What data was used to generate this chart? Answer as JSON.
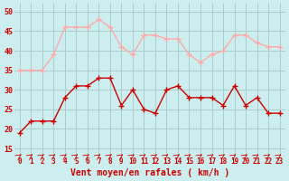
{
  "x": [
    0,
    1,
    2,
    3,
    4,
    5,
    6,
    7,
    8,
    9,
    10,
    11,
    12,
    13,
    14,
    15,
    16,
    17,
    18,
    19,
    20,
    21,
    22,
    23
  ],
  "rafales": [
    35,
    35,
    35,
    39,
    46,
    46,
    46,
    48,
    46,
    41,
    39,
    44,
    44,
    43,
    43,
    39,
    37,
    39,
    40,
    44,
    44,
    42,
    41,
    41
  ],
  "vent_moyen": [
    19,
    22,
    22,
    22,
    28,
    31,
    31,
    33,
    33,
    26,
    30,
    25,
    24,
    30,
    31,
    28,
    28,
    28,
    26,
    31,
    26,
    28,
    24,
    24
  ],
  "line_color_rafales": "#ffaaaa",
  "line_color_vent": "#cc0000",
  "marker_color_rafales": "#ffaaaa",
  "marker_color_vent": "#cc0000",
  "bg_color": "#cceeee",
  "grid_color": "#aacccc",
  "xlabel": "Vent moyen/en rafales ( km/h )",
  "xlabel_color": "#cc0000",
  "tick_color": "#cc0000",
  "ylim": [
    13,
    52
  ],
  "yticks": [
    15,
    20,
    25,
    30,
    35,
    40,
    45,
    50
  ],
  "xlim": [
    -0.5,
    23.5
  ]
}
